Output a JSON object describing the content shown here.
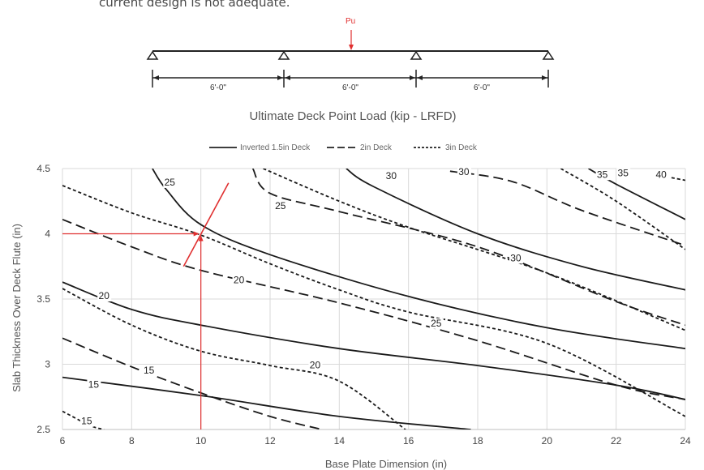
{
  "page": {
    "intro_text": "current design is not adequate."
  },
  "beam_diagram": {
    "load_label": "Pu",
    "span_labels": [
      "6'-0\"",
      "6'-0\"",
      "6'-0\""
    ],
    "load_color": "#e03030"
  },
  "chart_data": {
    "type": "line",
    "title": "Ultimate Deck Point Load (kip - LRFD)",
    "xlabel": "Base Plate Dimension (in)",
    "ylabel": "Slab Thickness Over Deck Flute (in)",
    "xlim": [
      6,
      24
    ],
    "ylim": [
      2.5,
      4.5
    ],
    "x_ticks": [
      "6",
      "8",
      "10",
      "12",
      "14",
      "16",
      "18",
      "20",
      "22",
      "24"
    ],
    "y_ticks": [
      "2.5",
      "3",
      "3.5",
      "4",
      "4.5"
    ],
    "grid": true,
    "legend_position": "top",
    "legend": [
      {
        "label": "Inverted 1.5in Deck",
        "dash": "solid"
      },
      {
        "label": "2in Deck",
        "dash": "long-dash"
      },
      {
        "label": "3in Deck",
        "dash": "short-dash"
      }
    ],
    "series": [
      {
        "deck": "Inverted 1.5in Deck",
        "load": "15",
        "label_at": [
          6.9,
          2.82
        ],
        "points": [
          [
            6,
            2.9
          ],
          [
            10,
            2.76
          ],
          [
            14,
            2.6
          ],
          [
            17.8,
            2.5
          ]
        ]
      },
      {
        "deck": "Inverted 1.5in Deck",
        "load": "20",
        "label_at": [
          7.2,
          3.5
        ],
        "points": [
          [
            6,
            3.63
          ],
          [
            8,
            3.42
          ],
          [
            10,
            3.3
          ],
          [
            14,
            3.12
          ],
          [
            18,
            2.99
          ],
          [
            22,
            2.84
          ],
          [
            24,
            2.73
          ]
        ]
      },
      {
        "deck": "Inverted 1.5in Deck",
        "load": "25",
        "label_at": [
          9.1,
          4.37
        ],
        "points": [
          [
            8.6,
            4.5
          ],
          [
            9,
            4.34
          ],
          [
            10,
            4.07
          ],
          [
            12,
            3.84
          ],
          [
            16,
            3.52
          ],
          [
            20,
            3.28
          ],
          [
            24,
            3.12
          ]
        ]
      },
      {
        "deck": "Inverted 1.5in Deck",
        "load": "30",
        "label_at": [
          15.5,
          4.42
        ],
        "points": [
          [
            14.2,
            4.5
          ],
          [
            15,
            4.36
          ],
          [
            18,
            4.0
          ],
          [
            21,
            3.75
          ],
          [
            24,
            3.57
          ]
        ]
      },
      {
        "deck": "Inverted 1.5in Deck",
        "load": "35",
        "label_at": [
          21.6,
          4.43
        ],
        "points": [
          [
            21.2,
            4.5
          ],
          [
            22,
            4.38
          ],
          [
            24,
            4.11
          ]
        ]
      },
      {
        "deck": "2in Deck",
        "load": "15",
        "label_at": [
          8.5,
          2.93
        ],
        "points": [
          [
            6,
            3.2
          ],
          [
            8,
            2.98
          ],
          [
            10,
            2.78
          ],
          [
            12,
            2.6
          ],
          [
            13.5,
            2.5
          ]
        ]
      },
      {
        "deck": "2in Deck",
        "load": "20",
        "label_at": [
          11.1,
          3.62
        ],
        "points": [
          [
            6,
            4.11
          ],
          [
            8,
            3.9
          ],
          [
            10,
            3.72
          ],
          [
            14,
            3.47
          ],
          [
            18,
            3.18
          ],
          [
            22,
            2.84
          ],
          [
            24,
            2.73
          ]
        ]
      },
      {
        "deck": "2in Deck",
        "load": "25",
        "label_at": [
          12.3,
          4.19
        ],
        "points": [
          [
            11.5,
            4.5
          ],
          [
            12,
            4.31
          ],
          [
            14,
            4.17
          ],
          [
            18,
            3.9
          ],
          [
            22,
            3.48
          ],
          [
            24,
            3.3
          ]
        ]
      },
      {
        "deck": "2in Deck",
        "load": "30",
        "label_at": [
          17.6,
          4.45
        ],
        "points": [
          [
            17.2,
            4.48
          ],
          [
            19,
            4.4
          ],
          [
            21,
            4.18
          ],
          [
            24,
            3.91
          ]
        ]
      },
      {
        "deck": "3in Deck",
        "load": "15",
        "label_at": [
          6.7,
          2.54
        ],
        "points": [
          [
            6,
            2.64
          ],
          [
            6.8,
            2.53
          ],
          [
            7.2,
            2.5
          ]
        ]
      },
      {
        "deck": "3in Deck",
        "load": "20",
        "label_at": [
          13.3,
          2.97
        ],
        "points": [
          [
            6,
            3.58
          ],
          [
            8,
            3.3
          ],
          [
            10,
            3.1
          ],
          [
            12,
            2.99
          ],
          [
            14,
            2.87
          ],
          [
            16,
            2.48
          ]
        ]
      },
      {
        "deck": "3in Deck",
        "load": "25",
        "label_at": [
          16.8,
          3.29
        ],
        "points": [
          [
            6,
            4.37
          ],
          [
            8,
            4.16
          ],
          [
            10,
            3.99
          ],
          [
            12,
            3.77
          ],
          [
            14,
            3.57
          ],
          [
            16,
            3.4
          ],
          [
            20,
            3.16
          ],
          [
            24,
            2.6
          ]
        ]
      },
      {
        "deck": "3in Deck",
        "load": "30",
        "label_at": [
          19.1,
          3.79
        ],
        "points": [
          [
            11.8,
            4.5
          ],
          [
            14,
            4.25
          ],
          [
            16,
            4.05
          ],
          [
            20,
            3.7
          ],
          [
            24,
            3.26
          ]
        ]
      },
      {
        "deck": "3in Deck",
        "load": "35",
        "label_at": [
          22.2,
          4.44
        ],
        "points": [
          [
            20.4,
            4.5
          ],
          [
            22,
            4.25
          ],
          [
            24,
            3.88
          ]
        ]
      },
      {
        "deck": "3in Deck",
        "load": "40",
        "label_at": [
          23.3,
          4.43
        ],
        "points": [
          [
            23.6,
            4.43
          ],
          [
            24,
            4.41
          ]
        ]
      }
    ],
    "annotation": {
      "color": "#e03030",
      "horizontal_at_y": 4,
      "vertical_at_x": 10,
      "marked_point": [
        10,
        4
      ],
      "arrow_from": [
        9.5,
        3.75
      ],
      "arrow_to": [
        10.8,
        4.39
      ]
    }
  }
}
